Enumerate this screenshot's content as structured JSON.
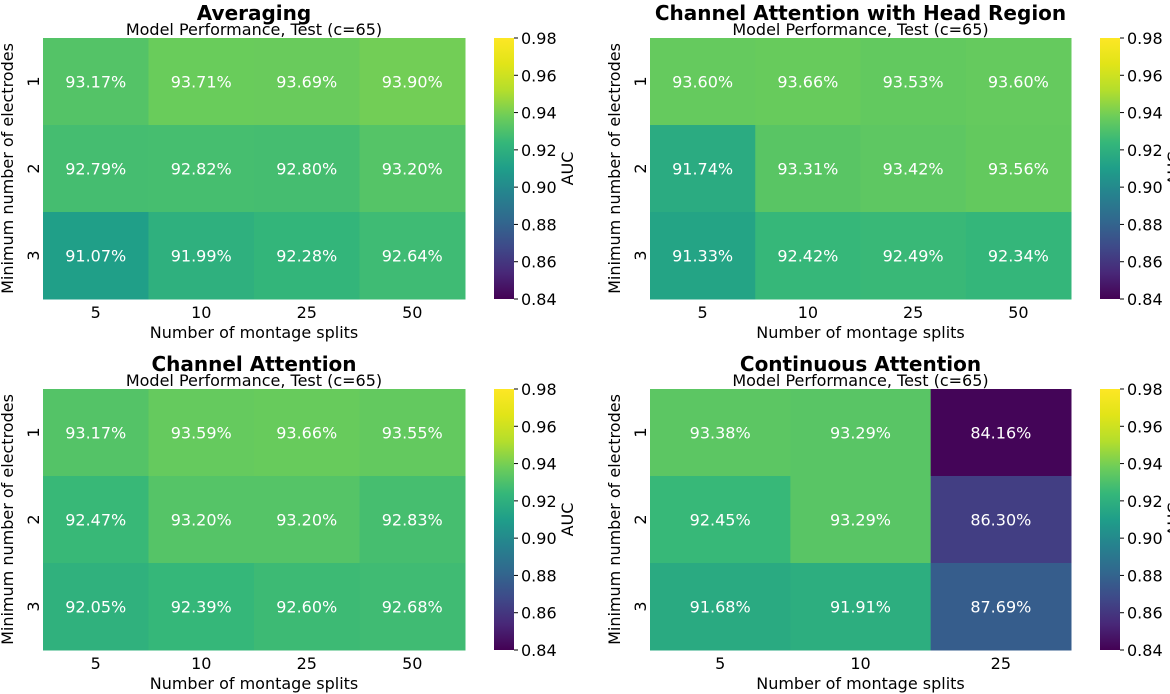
{
  "colorbar": {
    "label": "AUC",
    "vmin": 0.84,
    "vmax": 0.98,
    "ticks": [
      "0.98",
      "0.96",
      "0.94",
      "0.92",
      "0.90",
      "0.88",
      "0.86",
      "0.84"
    ],
    "colormap": "viridis"
  },
  "chart_data": [
    {
      "type": "heatmap",
      "title": "Averaging",
      "subtitle": "Model Performance, Test (c=65)",
      "xlabel": "Number of montage splits",
      "ylabel": "Minimum number of electrodes",
      "x_categories": [
        "5",
        "10",
        "25",
        "50"
      ],
      "y_categories": [
        "1",
        "2",
        "3"
      ],
      "values": [
        [
          0.9317,
          0.9371,
          0.9369,
          0.939
        ],
        [
          0.9279,
          0.9282,
          0.928,
          0.932
        ],
        [
          0.9107,
          0.9199,
          0.9228,
          0.9264
        ]
      ],
      "labels": [
        [
          "93.17%",
          "93.71%",
          "93.69%",
          "93.90%"
        ],
        [
          "92.79%",
          "92.82%",
          "92.80%",
          "93.20%"
        ],
        [
          "91.07%",
          "91.99%",
          "92.28%",
          "92.64%"
        ]
      ]
    },
    {
      "type": "heatmap",
      "title": "Channel Attention with Head Region",
      "subtitle": "Model Performance, Test (c=65)",
      "xlabel": "Number of montage splits",
      "ylabel": "Minimum number of electrodes",
      "x_categories": [
        "5",
        "10",
        "25",
        "50"
      ],
      "y_categories": [
        "1",
        "2",
        "3"
      ],
      "values": [
        [
          0.936,
          0.9366,
          0.9353,
          0.936
        ],
        [
          0.9174,
          0.9331,
          0.9342,
          0.9356
        ],
        [
          0.9133,
          0.9242,
          0.9249,
          0.9234
        ]
      ],
      "labels": [
        [
          "93.60%",
          "93.66%",
          "93.53%",
          "93.60%"
        ],
        [
          "91.74%",
          "93.31%",
          "93.42%",
          "93.56%"
        ],
        [
          "91.33%",
          "92.42%",
          "92.49%",
          "92.34%"
        ]
      ]
    },
    {
      "type": "heatmap",
      "title": "Channel Attention",
      "subtitle": "Model Performance, Test (c=65)",
      "xlabel": "Number of montage splits",
      "ylabel": "Minimum number of electrodes",
      "x_categories": [
        "5",
        "10",
        "25",
        "50"
      ],
      "y_categories": [
        "1",
        "2",
        "3"
      ],
      "values": [
        [
          0.9317,
          0.9359,
          0.9366,
          0.9355
        ],
        [
          0.9247,
          0.932,
          0.932,
          0.9283
        ],
        [
          0.9205,
          0.9239,
          0.926,
          0.9268
        ]
      ],
      "labels": [
        [
          "93.17%",
          "93.59%",
          "93.66%",
          "93.55%"
        ],
        [
          "92.47%",
          "93.20%",
          "93.20%",
          "92.83%"
        ],
        [
          "92.05%",
          "92.39%",
          "92.60%",
          "92.68%"
        ]
      ]
    },
    {
      "type": "heatmap",
      "title": "Continuous Attention",
      "subtitle": "Model Performance, Test (c=65)",
      "xlabel": "Number of montage splits",
      "ylabel": "Minimum number of electrodes",
      "x_categories": [
        "5",
        "10",
        "25"
      ],
      "y_categories": [
        "1",
        "2",
        "3"
      ],
      "values": [
        [
          0.9338,
          0.9329,
          0.8416
        ],
        [
          0.9245,
          0.9329,
          0.863
        ],
        [
          0.9168,
          0.9191,
          0.8769
        ]
      ],
      "labels": [
        [
          "93.38%",
          "93.29%",
          "84.16%"
        ],
        [
          "92.45%",
          "93.29%",
          "86.30%"
        ],
        [
          "91.68%",
          "91.91%",
          "87.69%"
        ]
      ]
    }
  ]
}
